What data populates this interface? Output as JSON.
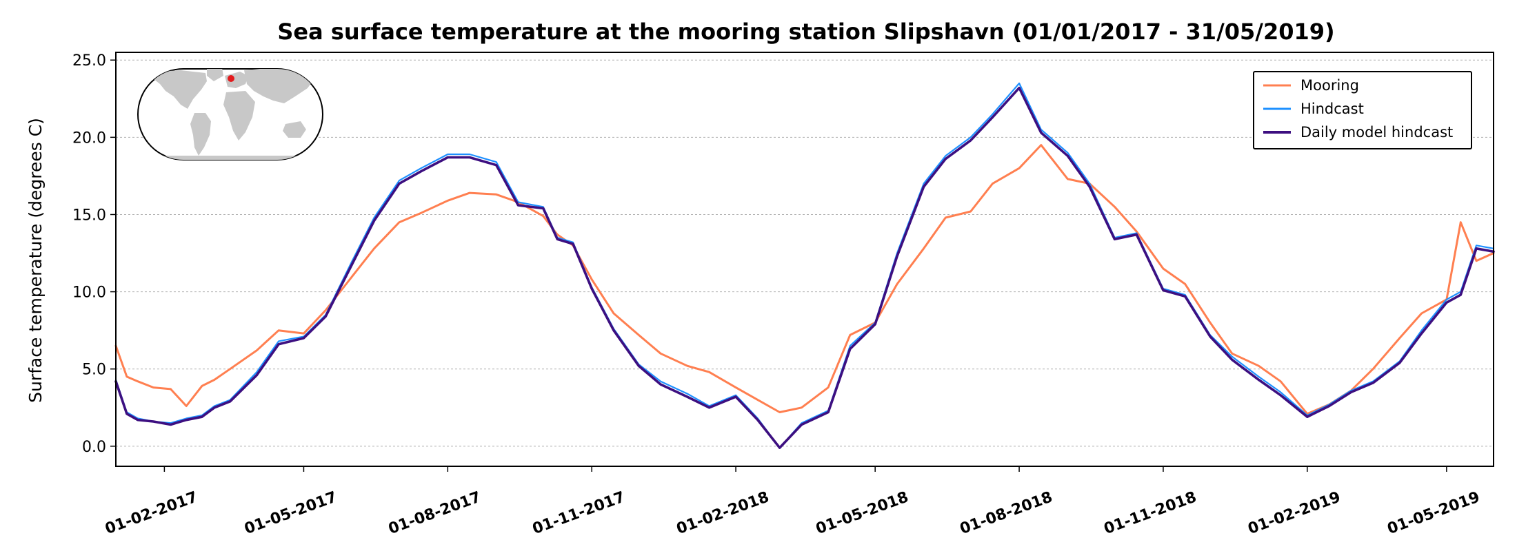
{
  "chart_data": {
    "type": "line",
    "title": "Sea surface temperature at the mooring station Slipshavn (01/01/2017 - 31/05/2019)",
    "xlabel": "",
    "ylabel": "Surface temperature (degrees C)",
    "xlim": [
      "2017-01-01",
      "2019-05-31"
    ],
    "ylim": [
      -1.3,
      25.5
    ],
    "yticks": [
      0.0,
      5.0,
      10.0,
      15.0,
      20.0,
      25.0
    ],
    "ytick_labels": [
      "0.0",
      "5.0",
      "10.0",
      "15.0",
      "20.0",
      "25.0"
    ],
    "xticks": [
      "2017-02-01",
      "2017-05-01",
      "2017-08-01",
      "2017-11-01",
      "2018-02-01",
      "2018-05-01",
      "2018-08-01",
      "2018-11-01",
      "2019-02-01",
      "2019-05-01"
    ],
    "xtick_labels": [
      "01-02-2017",
      "01-05-2017",
      "01-08-2017",
      "01-11-2017",
      "01-02-2018",
      "01-05-2018",
      "01-08-2018",
      "01-11-2018",
      "01-02-2019",
      "01-05-2019"
    ],
    "grid": "horizontal dotted",
    "legend_position": "top-right",
    "inset": "world map with red dot marking station location",
    "inset_marker_color": "#e31a1c",
    "series": [
      {
        "name": "Mooring",
        "color": "#ff7f50",
        "x": [
          "2017-01-01",
          "2017-01-08",
          "2017-01-15",
          "2017-01-25",
          "2017-02-05",
          "2017-02-15",
          "2017-02-25",
          "2017-03-05",
          "2017-03-15",
          "2017-04-01",
          "2017-04-15",
          "2017-05-01",
          "2017-05-15",
          "2017-06-01",
          "2017-06-15",
          "2017-07-01",
          "2017-07-15",
          "2017-08-01",
          "2017-08-15",
          "2017-09-01",
          "2017-09-15",
          "2017-10-01",
          "2017-10-10",
          "2017-10-20",
          "2017-11-01",
          "2017-11-15",
          "2017-12-01",
          "2017-12-15",
          "2018-01-01",
          "2018-01-15",
          "2018-02-01",
          "2018-02-15",
          "2018-03-01",
          "2018-03-15",
          "2018-04-01",
          "2018-04-15",
          "2018-05-01",
          "2018-05-15",
          "2018-06-01",
          "2018-06-15",
          "2018-07-01",
          "2018-07-15",
          "2018-08-01",
          "2018-08-15",
          "2018-09-01",
          "2018-09-15",
          "2018-10-01",
          "2018-10-15",
          "2018-11-01",
          "2018-11-15",
          "2018-12-01",
          "2018-12-15",
          "2019-01-01",
          "2019-01-15",
          "2019-02-01",
          "2019-02-15",
          "2019-03-01",
          "2019-03-15",
          "2019-04-01",
          "2019-04-15",
          "2019-05-01",
          "2019-05-10",
          "2019-05-20",
          "2019-05-31"
        ],
        "values": [
          6.5,
          4.5,
          4.2,
          3.8,
          3.7,
          2.6,
          3.9,
          4.3,
          5.0,
          6.2,
          7.5,
          7.3,
          8.8,
          11.0,
          12.8,
          14.5,
          15.1,
          15.9,
          16.4,
          16.3,
          15.8,
          14.9,
          13.7,
          13.0,
          10.8,
          8.6,
          7.2,
          6.0,
          5.2,
          4.8,
          3.8,
          3.0,
          2.2,
          2.5,
          3.8,
          7.2,
          8.0,
          10.5,
          12.8,
          14.8,
          15.2,
          17.0,
          18.0,
          19.5,
          17.3,
          17.0,
          15.5,
          13.9,
          11.5,
          10.5,
          8.0,
          6.0,
          5.2,
          4.2,
          2.1,
          2.7,
          3.6,
          5.0,
          7.0,
          8.6,
          9.5,
          14.5,
          12.0,
          12.5
        ]
      },
      {
        "name": "Hindcast",
        "color": "#1e90ff",
        "x": [
          "2017-01-01",
          "2017-01-08",
          "2017-01-15",
          "2017-01-25",
          "2017-02-05",
          "2017-02-15",
          "2017-02-25",
          "2017-03-05",
          "2017-03-15",
          "2017-04-01",
          "2017-04-15",
          "2017-05-01",
          "2017-05-15",
          "2017-06-01",
          "2017-06-15",
          "2017-07-01",
          "2017-07-15",
          "2017-08-01",
          "2017-08-15",
          "2017-09-01",
          "2017-09-15",
          "2017-10-01",
          "2017-10-10",
          "2017-10-20",
          "2017-11-01",
          "2017-11-15",
          "2017-12-01",
          "2017-12-15",
          "2018-01-01",
          "2018-01-15",
          "2018-02-01",
          "2018-02-15",
          "2018-03-01",
          "2018-03-15",
          "2018-04-01",
          "2018-04-15",
          "2018-05-01",
          "2018-05-15",
          "2018-06-01",
          "2018-06-15",
          "2018-07-01",
          "2018-07-15",
          "2018-08-01",
          "2018-08-15",
          "2018-09-01",
          "2018-09-15",
          "2018-10-01",
          "2018-10-15",
          "2018-11-01",
          "2018-11-15",
          "2018-12-01",
          "2018-12-15",
          "2019-01-01",
          "2019-01-15",
          "2019-02-01",
          "2019-02-15",
          "2019-03-01",
          "2019-03-15",
          "2019-04-01",
          "2019-04-15",
          "2019-05-01",
          "2019-05-10",
          "2019-05-20",
          "2019-05-31"
        ],
        "values": [
          4.3,
          2.2,
          1.8,
          1.6,
          1.5,
          1.8,
          2.0,
          2.6,
          3.0,
          4.8,
          6.8,
          7.1,
          8.5,
          12.0,
          14.8,
          17.2,
          18.0,
          18.9,
          18.9,
          18.4,
          15.8,
          15.5,
          13.5,
          13.2,
          10.3,
          7.6,
          5.3,
          4.2,
          3.4,
          2.6,
          3.3,
          1.8,
          -0.1,
          1.5,
          2.3,
          6.5,
          8.0,
          12.5,
          17.0,
          18.8,
          20.0,
          21.5,
          23.5,
          20.5,
          19.0,
          17.0,
          13.5,
          13.8,
          10.2,
          9.8,
          7.2,
          5.8,
          4.5,
          3.5,
          2.0,
          2.7,
          3.6,
          4.2,
          5.5,
          7.5,
          9.5,
          10.0,
          13.0,
          12.8
        ]
      },
      {
        "name": "Daily model hindcast",
        "color": "#3d0f80",
        "x": [
          "2017-01-01",
          "2017-01-08",
          "2017-01-15",
          "2017-01-25",
          "2017-02-05",
          "2017-02-15",
          "2017-02-25",
          "2017-03-05",
          "2017-03-15",
          "2017-04-01",
          "2017-04-15",
          "2017-05-01",
          "2017-05-15",
          "2017-06-01",
          "2017-06-15",
          "2017-07-01",
          "2017-07-15",
          "2017-08-01",
          "2017-08-15",
          "2017-09-01",
          "2017-09-15",
          "2017-10-01",
          "2017-10-10",
          "2017-10-20",
          "2017-11-01",
          "2017-11-15",
          "2017-12-01",
          "2017-12-15",
          "2018-01-01",
          "2018-01-15",
          "2018-02-01",
          "2018-02-15",
          "2018-03-01",
          "2018-03-15",
          "2018-04-01",
          "2018-04-15",
          "2018-05-01",
          "2018-05-15",
          "2018-06-01",
          "2018-06-15",
          "2018-07-01",
          "2018-07-15",
          "2018-08-01",
          "2018-08-15",
          "2018-09-01",
          "2018-09-15",
          "2018-10-01",
          "2018-10-15",
          "2018-11-01",
          "2018-11-15",
          "2018-12-01",
          "2018-12-15",
          "2019-01-01",
          "2019-01-15",
          "2019-02-01",
          "2019-02-15",
          "2019-03-01",
          "2019-03-15",
          "2019-04-01",
          "2019-04-15",
          "2019-05-01",
          "2019-05-10",
          "2019-05-20",
          "2019-05-31"
        ],
        "values": [
          4.2,
          2.1,
          1.7,
          1.6,
          1.4,
          1.7,
          1.9,
          2.5,
          2.9,
          4.6,
          6.6,
          7.0,
          8.4,
          11.8,
          14.6,
          17.0,
          17.8,
          18.7,
          18.7,
          18.2,
          15.6,
          15.4,
          13.4,
          13.1,
          10.2,
          7.5,
          5.2,
          4.0,
          3.2,
          2.5,
          3.2,
          1.7,
          -0.1,
          1.4,
          2.2,
          6.3,
          7.9,
          12.3,
          16.8,
          18.6,
          19.8,
          21.3,
          23.2,
          20.3,
          18.8,
          16.8,
          13.4,
          13.7,
          10.1,
          9.7,
          7.1,
          5.6,
          4.3,
          3.3,
          1.9,
          2.6,
          3.5,
          4.1,
          5.4,
          7.3,
          9.3,
          9.8,
          12.8,
          12.6
        ]
      }
    ]
  }
}
